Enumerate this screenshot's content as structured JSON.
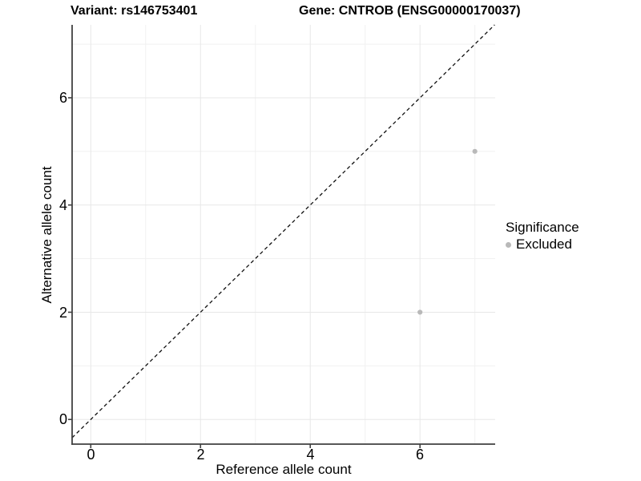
{
  "titles": {
    "variant": "Variant: rs146753401",
    "gene": "Gene: CNTROB (ENSG00000170037)"
  },
  "axis": {
    "x_label": "Reference allele count",
    "y_label": "Alternative allele count",
    "x_tick_labels": [
      "0",
      "2",
      "4",
      "6"
    ],
    "y_tick_labels": [
      "0",
      "2",
      "4",
      "6"
    ]
  },
  "legend": {
    "title": "Significance",
    "items": [
      {
        "label": "Excluded",
        "marker_color": "#b9b9b9"
      }
    ]
  },
  "colors": {
    "background": "#ffffff",
    "point": "#b9b9b9",
    "axis_line": "#404040",
    "grid_major": "#e7e7e7",
    "grid_minor": "#f1f1f1",
    "reference_line": "#111111",
    "text": "#000000"
  },
  "chart_data": {
    "type": "scatter",
    "title": "Variant: rs146753401 — Gene: CNTROB (ENSG00000170037)",
    "xlabel": "Reference allele count",
    "ylabel": "Alternative allele count",
    "series": [
      {
        "name": "Excluded",
        "color": "#b9b9b9",
        "points": [
          {
            "x": 6,
            "y": 2
          },
          {
            "x": 7,
            "y": 5
          }
        ]
      }
    ],
    "reference_line": {
      "type": "identity",
      "equation": "y = x",
      "slope": 1,
      "intercept": 0,
      "linestyle": "dashed",
      "color": "#111111"
    },
    "x_ticks": [
      0,
      2,
      4,
      6
    ],
    "y_ticks": [
      0,
      2,
      4,
      6
    ],
    "x_minor_gridlines": [
      1,
      3,
      5,
      7
    ],
    "y_minor_gridlines": [
      1,
      3,
      5,
      7
    ],
    "xlim": [
      -0.34,
      7.37
    ],
    "ylim": [
      -0.46,
      7.36
    ],
    "grid": "on",
    "legend_position": "right"
  }
}
